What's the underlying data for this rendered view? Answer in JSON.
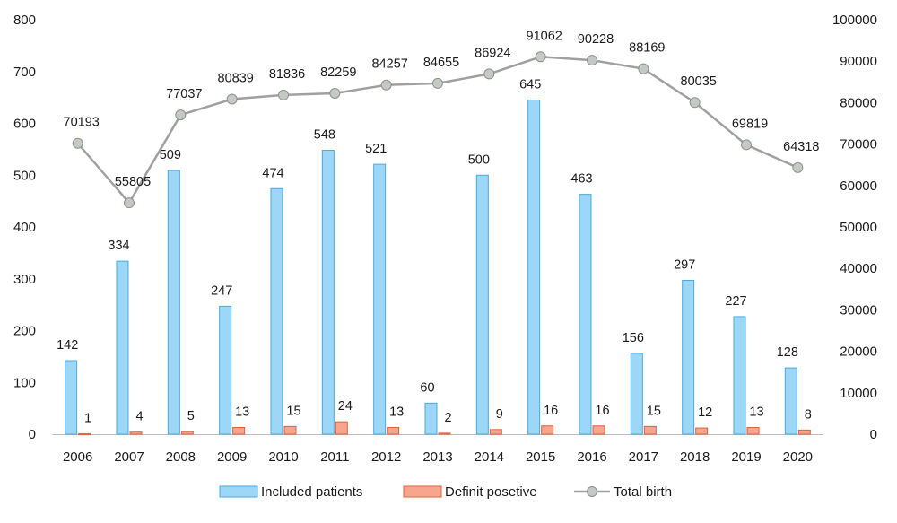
{
  "chart_data": {
    "type": "bar",
    "categories": [
      "2006",
      "2007",
      "2008",
      "2009",
      "2010",
      "2011",
      "2012",
      "2013",
      "2014",
      "2015",
      "2016",
      "2017",
      "2018",
      "2019",
      "2020"
    ],
    "series": [
      {
        "name": "Included patients",
        "type": "bar",
        "axis": "left",
        "color": "#9dd7f7",
        "stroke": "#4aa9e0",
        "values": [
          142,
          334,
          509,
          247,
          474,
          548,
          521,
          60,
          500,
          645,
          463,
          156,
          297,
          227,
          128
        ],
        "labels": [
          "142",
          "334",
          "509",
          "247",
          "474",
          "548",
          "521",
          "60",
          "500",
          "645",
          "463",
          "156",
          "297",
          "227",
          "128"
        ]
      },
      {
        "name": "Definit posetive",
        "type": "bar",
        "axis": "left",
        "color": "#f7a58c",
        "stroke": "#e0603d",
        "values": [
          1,
          4,
          5,
          13,
          15,
          24,
          13,
          2,
          9,
          16,
          16,
          15,
          12,
          13,
          8
        ],
        "labels": [
          "1",
          "4",
          "5",
          "13",
          "15",
          "24",
          "13",
          "2",
          "9",
          "16",
          "16",
          "15",
          "12",
          "13",
          "8"
        ]
      },
      {
        "name": "Total birth",
        "type": "line",
        "axis": "right",
        "color": "#a0a0a0",
        "marker_color": "#c3c9c3",
        "values": [
          70193,
          55805,
          77037,
          80839,
          81836,
          82259,
          84257,
          84655,
          86924,
          91062,
          90228,
          88169,
          80035,
          69819,
          64318
        ],
        "labels": [
          "70193",
          "55805",
          "77037",
          "80839",
          "81836",
          "82259",
          "84257",
          "84655",
          "86924",
          "91062",
          "90228",
          "88169",
          "80035",
          "69819",
          "64318"
        ]
      }
    ],
    "y_left": {
      "min": 0,
      "max": 800,
      "ticks": [
        "0",
        "100",
        "200",
        "300",
        "400",
        "500",
        "600",
        "700",
        "800"
      ]
    },
    "y_right": {
      "min": 0,
      "max": 100000,
      "ticks": [
        "0",
        "10000",
        "20000",
        "30000",
        "40000",
        "50000",
        "60000",
        "70000",
        "80000",
        "90000",
        "100000"
      ]
    },
    "grid": false,
    "legend_position": "bottom"
  }
}
